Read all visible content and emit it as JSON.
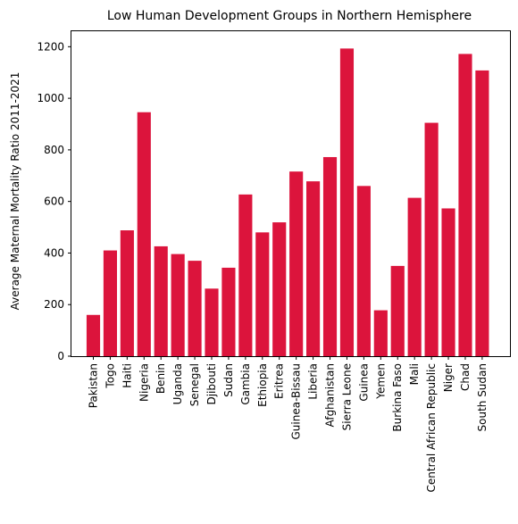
{
  "chart_data": {
    "type": "bar",
    "title": "Low Human Development Groups in Northern Hemisphere",
    "xlabel": "",
    "ylabel": "Average Maternal Mortality Ratio 2011-2021",
    "ylim": [
      0,
      1260
    ],
    "yticks": [
      0,
      200,
      400,
      600,
      800,
      1000,
      1200
    ],
    "grid": false,
    "bar_color": "#dc143c",
    "categories": [
      "Pakistan",
      "Togo",
      "Haiti",
      "Nigeria",
      "Benin",
      "Uganda",
      "Senegal",
      "Djibouti",
      "Sudan",
      "Gambia",
      "Ethiopia",
      "Eritrea",
      "Guinea-Bissau",
      "Liberia",
      "Afghanistan",
      "Sierra Leone",
      "Guinea",
      "Yemen",
      "Burkina Faso",
      "Mali",
      "Central African Republic",
      "Niger",
      "Chad",
      "South Sudan"
    ],
    "values": [
      160,
      410,
      488,
      946,
      426,
      396,
      370,
      262,
      343,
      627,
      480,
      519,
      716,
      678,
      772,
      1193,
      660,
      178,
      350,
      614,
      905,
      573,
      1172,
      1108
    ]
  }
}
